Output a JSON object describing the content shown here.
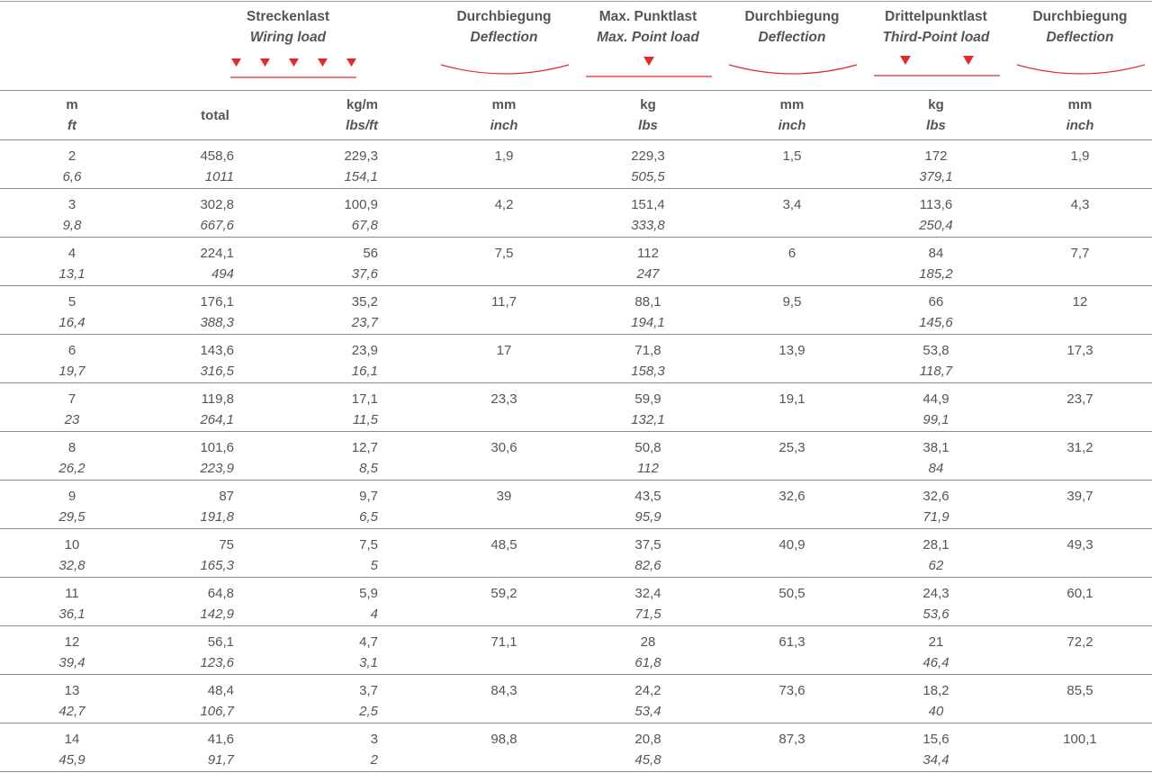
{
  "colors": {
    "accent": "#e8272a",
    "text": "#555555",
    "rule": "#8a8a8a"
  },
  "headers": {
    "wiring_de": "Streckenlast",
    "wiring_en": "Wiring load",
    "defl1_de": "Durchbiegung",
    "defl1_en": "Deflection",
    "point_de": "Max. Punktlast",
    "point_en": "Max. Point load",
    "defl2_de": "Durchbiegung",
    "defl2_en": "Deflection",
    "third_de": "Drittelpunktlast",
    "third_en": "Third-Point load",
    "defl3_de": "Durchbiegung",
    "defl3_en": "Deflection"
  },
  "units": {
    "span_m": "m",
    "span_ft": "ft",
    "total": "total",
    "load_kgm": "kg/m",
    "load_lbsft": "lbs/ft",
    "defl1_mm": "mm",
    "defl1_inch": "inch",
    "point_kg": "kg",
    "point_lbs": "lbs",
    "defl2_mm": "mm",
    "defl2_inch": "inch",
    "third_kg": "kg",
    "third_lbs": "lbs",
    "defl3_mm": "mm",
    "defl3_inch": "inch"
  },
  "rows": [
    {
      "m": "2",
      "ft": "6,6",
      "total": "458,6",
      "total_lbs": "1011",
      "kgm": "229,3",
      "lbsft": "154,1",
      "d1": "1,9",
      "pkg": "229,3",
      "plbs": "505,5",
      "d2": "1,5",
      "tkg": "172",
      "tlbs": "379,1",
      "d3": "1,9"
    },
    {
      "m": "3",
      "ft": "9,8",
      "total": "302,8",
      "total_lbs": "667,6",
      "kgm": "100,9",
      "lbsft": "67,8",
      "d1": "4,2",
      "pkg": "151,4",
      "plbs": "333,8",
      "d2": "3,4",
      "tkg": "113,6",
      "tlbs": "250,4",
      "d3": "4,3"
    },
    {
      "m": "4",
      "ft": "13,1",
      "total": "224,1",
      "total_lbs": "494",
      "kgm": "56",
      "lbsft": "37,6",
      "d1": "7,5",
      "pkg": "112",
      "plbs": "247",
      "d2": "6",
      "tkg": "84",
      "tlbs": "185,2",
      "d3": "7,7"
    },
    {
      "m": "5",
      "ft": "16,4",
      "total": "176,1",
      "total_lbs": "388,3",
      "kgm": "35,2",
      "lbsft": "23,7",
      "d1": "11,7",
      "pkg": "88,1",
      "plbs": "194,1",
      "d2": "9,5",
      "tkg": "66",
      "tlbs": "145,6",
      "d3": "12"
    },
    {
      "m": "6",
      "ft": "19,7",
      "total": "143,6",
      "total_lbs": "316,5",
      "kgm": "23,9",
      "lbsft": "16,1",
      "d1": "17",
      "pkg": "71,8",
      "plbs": "158,3",
      "d2": "13,9",
      "tkg": "53,8",
      "tlbs": "118,7",
      "d3": "17,3"
    },
    {
      "m": "7",
      "ft": "23",
      "total": "119,8",
      "total_lbs": "264,1",
      "kgm": "17,1",
      "lbsft": "11,5",
      "d1": "23,3",
      "pkg": "59,9",
      "plbs": "132,1",
      "d2": "19,1",
      "tkg": "44,9",
      "tlbs": "99,1",
      "d3": "23,7"
    },
    {
      "m": "8",
      "ft": "26,2",
      "total": "101,6",
      "total_lbs": "223,9",
      "kgm": "12,7",
      "lbsft": "8,5",
      "d1": "30,6",
      "pkg": "50,8",
      "plbs": "112",
      "d2": "25,3",
      "tkg": "38,1",
      "tlbs": "84",
      "d3": "31,2"
    },
    {
      "m": "9",
      "ft": "29,5",
      "total": "87",
      "total_lbs": "191,8",
      "kgm": "9,7",
      "lbsft": "6,5",
      "d1": "39",
      "pkg": "43,5",
      "plbs": "95,9",
      "d2": "32,6",
      "tkg": "32,6",
      "tlbs": "71,9",
      "d3": "39,7"
    },
    {
      "m": "10",
      "ft": "32,8",
      "total": "75",
      "total_lbs": "165,3",
      "kgm": "7,5",
      "lbsft": "5",
      "d1": "48,5",
      "pkg": "37,5",
      "plbs": "82,6",
      "d2": "40,9",
      "tkg": "28,1",
      "tlbs": "62",
      "d3": "49,3"
    },
    {
      "m": "11",
      "ft": "36,1",
      "total": "64,8",
      "total_lbs": "142,9",
      "kgm": "5,9",
      "lbsft": "4",
      "d1": "59,2",
      "pkg": "32,4",
      "plbs": "71,5",
      "d2": "50,5",
      "tkg": "24,3",
      "tlbs": "53,6",
      "d3": "60,1"
    },
    {
      "m": "12",
      "ft": "39,4",
      "total": "56,1",
      "total_lbs": "123,6",
      "kgm": "4,7",
      "lbsft": "3,1",
      "d1": "71,1",
      "pkg": "28",
      "plbs": "61,8",
      "d2": "61,3",
      "tkg": "21",
      "tlbs": "46,4",
      "d3": "72,2"
    },
    {
      "m": "13",
      "ft": "42,7",
      "total": "48,4",
      "total_lbs": "106,7",
      "kgm": "3,7",
      "lbsft": "2,5",
      "d1": "84,3",
      "pkg": "24,2",
      "plbs": "53,4",
      "d2": "73,6",
      "tkg": "18,2",
      "tlbs": "40",
      "d3": "85,5"
    },
    {
      "m": "14",
      "ft": "45,9",
      "total": "41,6",
      "total_lbs": "91,7",
      "kgm": "3",
      "lbsft": "2",
      "d1": "98,8",
      "pkg": "20,8",
      "plbs": "45,8",
      "d2": "87,3",
      "tkg": "15,6",
      "tlbs": "34,4",
      "d3": "100,1"
    }
  ]
}
